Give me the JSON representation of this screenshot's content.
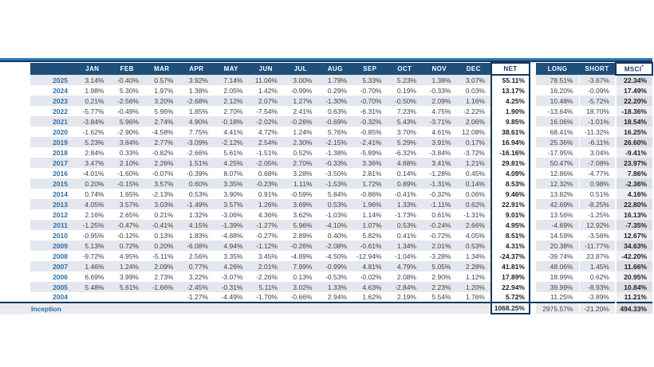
{
  "table_labels": {
    "net": "NET",
    "long": "LONG",
    "short": "SHORT",
    "msci": "MSCI",
    "msci_sup": "*"
  },
  "colors": {
    "header_bar": "#1f4e79",
    "rule_light_blue": "#2e75b6",
    "rule_dark": "#17365d",
    "year_text": "#2e6ca5",
    "row_stripe": "#e4e8ee",
    "inception_row_bg": "#e9ebee",
    "msci_col_shaded": "#dbdfe5",
    "msci_col_plain": "#efeff1",
    "value_text": "#404040",
    "emphasis_text": "#1c1c1c"
  },
  "chart_data": {
    "type": "table",
    "month_columns": [
      "JAN",
      "FEB",
      "MAR",
      "APR",
      "MAY",
      "JUN",
      "JUL",
      "AUG",
      "SEP",
      "OCT",
      "NOV",
      "DEC"
    ],
    "summary_columns": [
      "NET",
      "LONG",
      "SHORT",
      "MSCI*"
    ],
    "rows": [
      {
        "year": "2025",
        "values": [
          "3.14%",
          "-0.40%",
          "0.57%",
          "3.92%",
          "7.14%",
          "11.06%",
          "3.00%",
          "1.79%",
          "5.33%",
          "5.23%",
          "1.38%",
          "3.07%"
        ],
        "net": "55.11%",
        "long": "78.51%",
        "short": "-3.67%",
        "msci": "22.34%"
      },
      {
        "year": "2024",
        "values": [
          "1.98%",
          "5.30%",
          "1.97%",
          "1.38%",
          "2.05%",
          "1.42%",
          "-0.99%",
          "0.29%",
          "-0.70%",
          "0.19%",
          "-0.33%",
          "0.03%"
        ],
        "net": "13.17%",
        "long": "16.20%",
        "short": "-0.09%",
        "msci": "17.49%"
      },
      {
        "year": "2023",
        "values": [
          "0.21%",
          "-2.56%",
          "3.20%",
          "-2.68%",
          "2.12%",
          "2.07%",
          "1.27%",
          "-1.30%",
          "-0.70%",
          "-0.50%",
          "2.09%",
          "1.16%"
        ],
        "net": "4.25%",
        "long": "10.48%",
        "short": "-5.72%",
        "msci": "22.20%"
      },
      {
        "year": "2022",
        "values": [
          "-5.77%",
          "-0.49%",
          "5.96%",
          "1.85%",
          "2.70%",
          "-7.54%",
          "2.41%",
          "0.63%",
          "-6.31%",
          "7.23%",
          "4.75%",
          "-2.22%"
        ],
        "net": "1.90%",
        "long": "-13.64%",
        "short": "18.70%",
        "msci": "-18.36%"
      },
      {
        "year": "2021",
        "values": [
          "-3.84%",
          "5.96%",
          "2.74%",
          "4.90%",
          "-0.18%",
          "-2.02%",
          "-0.26%",
          "-0.69%",
          "-0.32%",
          "5.43%",
          "-3.71%",
          "2.06%"
        ],
        "net": "9.85%",
        "long": "16.06%",
        "short": "-1.01%",
        "msci": "18.54%"
      },
      {
        "year": "2020",
        "values": [
          "-1.62%",
          "-2.90%",
          "-4.58%",
          "7.75%",
          "4.41%",
          "4.72%",
          "1.24%",
          "5.76%",
          "-0.85%",
          "3.70%",
          "4.61%",
          "12.08%"
        ],
        "net": "38.61%",
        "long": "68.41%",
        "short": "-11.32%",
        "msci": "16.25%"
      },
      {
        "year": "2019",
        "values": [
          "5.23%",
          "3.84%",
          "2.77%",
          "-3.09%",
          "-2.12%",
          "2.54%",
          "2.30%",
          "-2.15%",
          "-2.41%",
          "5.29%",
          "3.91%",
          "0.17%"
        ],
        "net": "16.94%",
        "long": "25.36%",
        "short": "-6.11%",
        "msci": "26.60%"
      },
      {
        "year": "2018",
        "values": [
          "2.84%",
          "0.33%",
          "-0.82%",
          "-2.66%",
          "5.61%",
          "-1.51%",
          "0.52%",
          "-1.38%",
          "-5.89%",
          "-6.32%",
          "-3.84%",
          "-3.72%"
        ],
        "net": "-16.16%",
        "long": "-17.95%",
        "short": "3.04%",
        "msci": "-9.41%"
      },
      {
        "year": "2017",
        "values": [
          "3.47%",
          "2.10%",
          "2.26%",
          "1.51%",
          "4.25%",
          "-2.05%",
          "2.70%",
          "-0.33%",
          "3.36%",
          "4.68%",
          "3.41%",
          "1.21%"
        ],
        "net": "29.81%",
        "long": "50.47%",
        "short": "-7.08%",
        "msci": "23.97%"
      },
      {
        "year": "2016",
        "values": [
          "-4.01%",
          "-1.60%",
          "-0.07%",
          "-0.39%",
          "8.07%",
          "0.68%",
          "3.28%",
          "-3.50%",
          "2.81%",
          "0.14%",
          "-1.28%",
          "0.45%"
        ],
        "net": "4.09%",
        "long": "12.86%",
        "short": "-4.77%",
        "msci": "7.86%"
      },
      {
        "year": "2015",
        "values": [
          "0.20%",
          "-0.15%",
          "3.57%",
          "0.60%",
          "3.35%",
          "-0.23%",
          "1.11%",
          "-1.53%",
          "1.72%",
          "0.89%",
          "-1.31%",
          "0.14%"
        ],
        "net": "8.53%",
        "long": "12.32%",
        "short": "0.98%",
        "msci": "-2.36%"
      },
      {
        "year": "2014",
        "values": [
          "0.74%",
          "1.65%",
          "-2.13%",
          "0.53%",
          "3.90%",
          "0.91%",
          "-0.59%",
          "5.84%",
          "-0.86%",
          "-0.41%",
          "-0.32%",
          "0.06%"
        ],
        "net": "9.46%",
        "long": "13.82%",
        "short": "0.51%",
        "msci": "4.16%"
      },
      {
        "year": "2013",
        "values": [
          "4.05%",
          "3.57%",
          "3.03%",
          "-1.49%",
          "3.57%",
          "1.26%",
          "3.69%",
          "0.53%",
          "1.96%",
          "1.33%",
          "-1.11%",
          "0.62%"
        ],
        "net": "22.91%",
        "long": "42.69%",
        "short": "-8.25%",
        "msci": "22.80%"
      },
      {
        "year": "2012",
        "values": [
          "2.16%",
          "2.65%",
          "0.21%",
          "1.32%",
          "-3.06%",
          "4.36%",
          "3.62%",
          "-1.03%",
          "1.14%",
          "-1.73%",
          "0.61%",
          "-1.31%"
        ],
        "net": "9.01%",
        "long": "13.56%",
        "short": "-1.25%",
        "msci": "16.13%"
      },
      {
        "year": "2011",
        "values": [
          "-1.25%",
          "-0.47%",
          "-0.41%",
          "4.15%",
          "-1.39%",
          "-1.27%",
          "5.96%",
          "-4.10%",
          "1.07%",
          "0.53%",
          "-0.24%",
          "2.66%"
        ],
        "net": "4.95%",
        "long": "-4.69%",
        "short": "12.92%",
        "msci": "-7.35%"
      },
      {
        "year": "2010",
        "values": [
          "-0.95%",
          "-0.12%",
          "0.13%",
          "1.83%",
          "-4.88%",
          "-0.27%",
          "2.89%",
          "0.40%",
          "5.82%",
          "0.41%",
          "-0.72%",
          "4.05%"
        ],
        "net": "8.51%",
        "long": "14.59%",
        "short": "-3.56%",
        "msci": "12.67%"
      },
      {
        "year": "2009",
        "values": [
          "5.13%",
          "0.72%",
          "0.20%",
          "-6.08%",
          "4.94%",
          "-1.12%",
          "-0.26%",
          "-2.08%",
          "-0.61%",
          "1.34%",
          "2.01%",
          "0.53%"
        ],
        "net": "4.31%",
        "long": "20.38%",
        "short": "-11.77%",
        "msci": "34.63%"
      },
      {
        "year": "2008",
        "values": [
          "-9.72%",
          "4.95%",
          "-5.11%",
          "2.56%",
          "3.35%",
          "3.45%",
          "-4.89%",
          "-4.50%",
          "-12.94%",
          "-1.04%",
          "-3.28%",
          "1.34%"
        ],
        "net": "-24.37%",
        "long": "-39.74%",
        "short": "23.87%",
        "msci": "-42.20%"
      },
      {
        "year": "2007",
        "values": [
          "1.46%",
          "1.24%",
          "2.09%",
          "0.77%",
          "4.26%",
          "2.01%",
          "7.99%",
          "-0.99%",
          "4.81%",
          "4.79%",
          "5.05%",
          "2.28%"
        ],
        "net": "41.81%",
        "long": "48.06%",
        "short": "1.45%",
        "msci": "11.66%"
      },
      {
        "year": "2006",
        "values": [
          "6.69%",
          "3.99%",
          "2.73%",
          "3.22%",
          "-3.07%",
          "-2.26%",
          "0.13%",
          "-0.53%",
          "-0.02%",
          "2.08%",
          "2.90%",
          "1.12%"
        ],
        "net": "17.89%",
        "long": "18.99%",
        "short": "0.62%",
        "msci": "20.95%"
      },
      {
        "year": "2005",
        "values": [
          "5.48%",
          "5.61%",
          "-1.66%",
          "-2.45%",
          "-0.31%",
          "5.11%",
          "3.02%",
          "1.33%",
          "4.63%",
          "-2.84%",
          "2.23%",
          "1.20%"
        ],
        "net": "22.94%",
        "long": "39.99%",
        "short": "-8.93%",
        "msci": "10.84%"
      },
      {
        "year": "2004",
        "values": [
          "",
          "",
          "",
          "-1.27%",
          "-4.49%",
          "-1.70%",
          "-0.66%",
          "2.94%",
          "1.62%",
          "2.19%",
          "5.54%",
          "1.76%"
        ],
        "net": "5.72%",
        "long": "11.25%",
        "short": "-3.89%",
        "msci": "11.21%"
      }
    ],
    "footer": {
      "label": "Inception",
      "net": "1068.25%",
      "long": "2975.57%",
      "short": "-21.20%",
      "msci": "494.33%"
    }
  }
}
